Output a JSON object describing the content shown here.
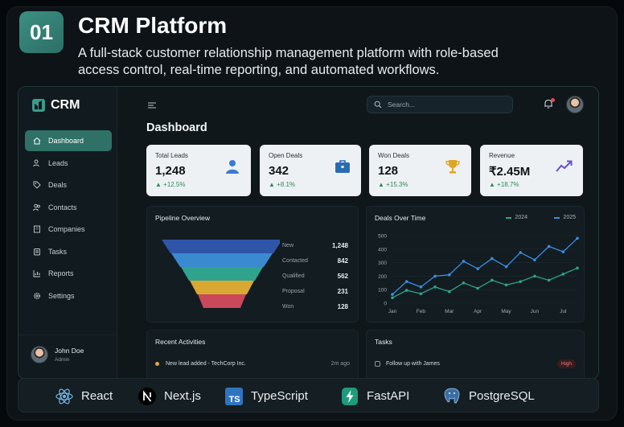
{
  "project": {
    "number": "01",
    "title": "CRM Platform",
    "description": "A full-stack customer relationship management platform with role-based access control, real-time reporting, and automated workflows."
  },
  "app": {
    "brand": "CRM",
    "search_placeholder": "Search...",
    "page_title": "Dashboard",
    "accent": "#2f7067"
  },
  "sidebar": {
    "items": [
      {
        "label": "Dashboard",
        "icon": "home-icon",
        "active": true
      },
      {
        "label": "Leads",
        "icon": "users-icon"
      },
      {
        "label": "Deals",
        "icon": "tag-icon"
      },
      {
        "label": "Contacts",
        "icon": "contacts-icon"
      },
      {
        "label": "Companies",
        "icon": "building-icon"
      },
      {
        "label": "Tasks",
        "icon": "tasks-icon"
      },
      {
        "label": "Reports",
        "icon": "reports-icon"
      },
      {
        "label": "Settings",
        "icon": "gear-icon"
      }
    ],
    "user": {
      "name": "John Doe",
      "role": "Admin"
    }
  },
  "kpis": [
    {
      "label": "Total Leads",
      "value": "1,248",
      "delta": "+12.5%",
      "icon": "user-icon",
      "color": "#3a7bd5"
    },
    {
      "label": "Open Deals",
      "value": "342",
      "delta": "+8.1%",
      "icon": "briefcase-icon",
      "color": "#2b6cb0"
    },
    {
      "label": "Won Deals",
      "value": "128",
      "delta": "+15.3%",
      "icon": "trophy-icon",
      "color": "#e0a526"
    },
    {
      "label": "Revenue",
      "value": "₹2.45M",
      "delta": "+18.7%",
      "icon": "trend-up-icon",
      "color": "#6b4fc9"
    }
  ],
  "pipeline": {
    "title": "Pipeline Overview",
    "stages": [
      {
        "label": "New",
        "value": "1,248",
        "color": "#2f55a8"
      },
      {
        "label": "Contacted",
        "value": "842",
        "color": "#3a8ad0"
      },
      {
        "label": "Qualified",
        "value": "562",
        "color": "#2fa38b"
      },
      {
        "label": "Proposal",
        "value": "231",
        "color": "#d9a832"
      },
      {
        "label": "Won",
        "value": "128",
        "color": "#c9485a"
      }
    ]
  },
  "chart_data": {
    "type": "line",
    "title": "Deals Over Time",
    "categories": [
      "Jan",
      "Feb",
      "Mar",
      "Apr",
      "May",
      "Jun",
      "Jul"
    ],
    "x": [
      "Jan",
      "",
      "Feb",
      "",
      "Mar",
      "",
      "Apr",
      "",
      "May",
      "",
      "Jun",
      "",
      "Jul",
      ""
    ],
    "series": [
      {
        "name": "2024",
        "color": "#2fa38b",
        "values": [
          40,
          95,
          70,
          120,
          85,
          150,
          110,
          170,
          135,
          160,
          200,
          170,
          215,
          260
        ]
      },
      {
        "name": "2025",
        "color": "#3b8ee0",
        "values": [
          65,
          160,
          120,
          200,
          210,
          310,
          255,
          330,
          270,
          375,
          320,
          420,
          380,
          480
        ]
      }
    ],
    "yticks": [
      0,
      100,
      200,
      300,
      400,
      500
    ],
    "ylim": [
      0,
      500
    ],
    "grid": true,
    "legend": "top-right"
  },
  "activities": {
    "title": "Recent Activities",
    "items": [
      {
        "text": "New lead added - TechCorp Inc.",
        "time": "2m ago"
      }
    ]
  },
  "tasks": {
    "title": "Tasks",
    "items": [
      {
        "text": "Follow up with James",
        "priority": "High"
      }
    ]
  },
  "tech_stack": [
    {
      "name": "React",
      "icon": "react-icon"
    },
    {
      "name": "Next.js",
      "icon": "nextjs-icon"
    },
    {
      "name": "TypeScript",
      "icon": "typescript-icon"
    },
    {
      "name": "FastAPI",
      "icon": "fastapi-icon"
    },
    {
      "name": "PostgreSQL",
      "icon": "postgresql-icon"
    }
  ]
}
